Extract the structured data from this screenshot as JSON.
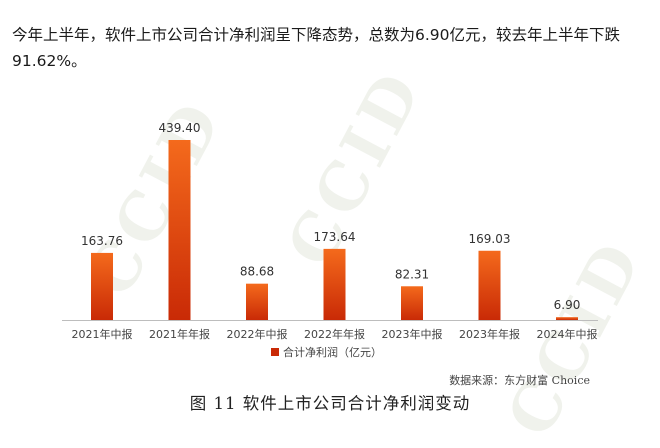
{
  "intro_text": "今年上半年，软件上市公司合计净利润呈下降态势，总数为6.90亿元，较去年上半年下跌91.62%。",
  "watermark": "CCID",
  "colors": {
    "bar_top": "#f46a1c",
    "bar_bottom": "#c92a06",
    "axis": "#bdbdbd",
    "label": "#333333"
  },
  "chart_data": {
    "type": "bar",
    "categories": [
      "2021年中报",
      "2021年年报",
      "2022年中报",
      "2022年年报",
      "2023年中报",
      "2023年年报",
      "2024年中报"
    ],
    "series": [
      {
        "name": "合计净利润（亿元）",
        "values": [
          163.76,
          439.4,
          88.68,
          173.64,
          82.31,
          169.03,
          6.9
        ]
      }
    ],
    "data_labels": [
      "163.76",
      "439.40",
      "88.68",
      "173.64",
      "82.31",
      "169.03",
      "6.90"
    ],
    "legend_position": "bottom",
    "grid": false,
    "ylim": [
      0,
      439.4
    ]
  },
  "source_text": "数据来源：东方财富 Choice",
  "caption": "图 11  软件上市公司合计净利润变动"
}
